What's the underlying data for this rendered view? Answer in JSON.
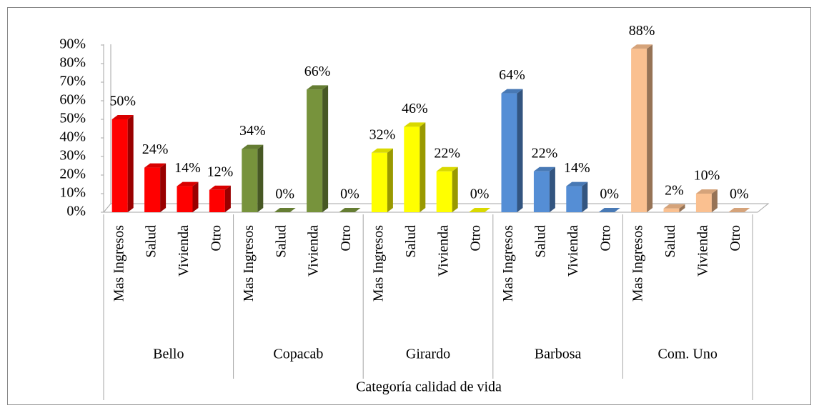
{
  "chart_data": {
    "type": "bar3d",
    "categories": [
      "Mas Ingresos",
      "Salud",
      "Vivienda",
      "Otro"
    ],
    "series": [
      {
        "name": "Bello",
        "color": "#ff0000",
        "values": [
          50,
          24,
          14,
          12
        ],
        "value_labels": [
          "50%",
          "24%",
          "14%",
          "12%"
        ]
      },
      {
        "name": "Copacab",
        "color": "#77933c",
        "values": [
          34,
          0,
          66,
          0
        ],
        "value_labels": [
          "34%",
          "0%",
          "66%",
          "0%"
        ]
      },
      {
        "name": "Girardo",
        "color": "#ffff00",
        "values": [
          32,
          46,
          22,
          0
        ],
        "value_labels": [
          "32%",
          "46%",
          "22%",
          "0%"
        ]
      },
      {
        "name": "Barbosa",
        "color": "#558ed5",
        "values": [
          64,
          22,
          14,
          0
        ],
        "value_labels": [
          "64%",
          "22%",
          "14%",
          "0%"
        ]
      },
      {
        "name": "Com. Uno",
        "color": "#fac090",
        "values": [
          88,
          2,
          10,
          0
        ],
        "value_labels": [
          "88%",
          "2%",
          "10%",
          "0%"
        ]
      }
    ],
    "x_label": "Categoría calidad de vida",
    "ylim": [
      0,
      90
    ],
    "yticks": [
      {
        "value": 0,
        "label": "0%"
      },
      {
        "value": 10,
        "label": "10%"
      },
      {
        "value": 20,
        "label": "20%"
      },
      {
        "value": 30,
        "label": "30%"
      },
      {
        "value": 40,
        "label": "40%"
      },
      {
        "value": 50,
        "label": "50%"
      },
      {
        "value": 60,
        "label": "60%"
      },
      {
        "value": 70,
        "label": "70%"
      },
      {
        "value": 80,
        "label": "80%"
      },
      {
        "value": 90,
        "label": "90%"
      }
    ]
  }
}
